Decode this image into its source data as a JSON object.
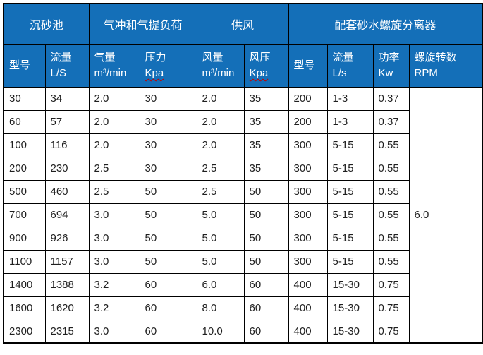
{
  "document": {
    "table": {
      "group_headers": [
        {
          "label": "沉砂池",
          "colspan": 2
        },
        {
          "label": "气冲和气提负荷",
          "colspan": 2
        },
        {
          "label": "供风",
          "colspan": 2
        },
        {
          "label": "配套砂水螺旋分离器",
          "colspan": 4
        }
      ],
      "columns": [
        {
          "title": "型号",
          "subtitle": "",
          "misspelled": false
        },
        {
          "title": "流量",
          "subtitle": "L/S",
          "misspelled": false
        },
        {
          "title": "气量",
          "subtitle": "m³/min",
          "misspelled": false
        },
        {
          "title": "压力",
          "subtitle": "Kpa",
          "misspelled": true
        },
        {
          "title": "风量",
          "subtitle": "m³/min",
          "misspelled": false
        },
        {
          "title": "风压",
          "subtitle": "Kpa",
          "misspelled": true
        },
        {
          "title": "型号",
          "subtitle": "",
          "misspelled": false
        },
        {
          "title": "流量",
          "subtitle": "L/s",
          "misspelled": false
        },
        {
          "title": "功率",
          "subtitle": "Kw",
          "misspelled": false
        },
        {
          "title": "螺旋转数",
          "subtitle": "RPM",
          "misspelled": false
        }
      ],
      "rows": [
        [
          "30",
          "34",
          "2.0",
          "30",
          "2.0",
          "35",
          "200",
          "1-3",
          "0.37"
        ],
        [
          "60",
          "57",
          "2.0",
          "30",
          "2.0",
          "35",
          "200",
          "1-3",
          "0.37"
        ],
        [
          "100",
          "116",
          "2.0",
          "30",
          "2.0",
          "35",
          "300",
          "5-15",
          "0.55"
        ],
        [
          "200",
          "230",
          "2.5",
          "30",
          "2.5",
          "35",
          "300",
          "5-15",
          "0.55"
        ],
        [
          "500",
          "460",
          "2.5",
          "50",
          "2.5",
          "50",
          "300",
          "5-15",
          "0.55"
        ],
        [
          "700",
          "694",
          "3.0",
          "50",
          "5.0",
          "50",
          "300",
          "5-15",
          "0.55"
        ],
        [
          "900",
          "926",
          "3.0",
          "50",
          "5.0",
          "50",
          "300",
          "5-15",
          "0.55"
        ],
        [
          "1100",
          "1157",
          "3.0",
          "50",
          "5.0",
          "50",
          "300",
          "5-15",
          "0.55"
        ],
        [
          "1400",
          "1388",
          "3.2",
          "60",
          "6.0",
          "60",
          "400",
          "15-30",
          "0.75"
        ],
        [
          "1600",
          "1620",
          "3.2",
          "60",
          "8.0",
          "60",
          "400",
          "15-30",
          "0.75"
        ],
        [
          "2300",
          "2315",
          "3.0",
          "60",
          "10.0",
          "60",
          "400",
          "15-30",
          "0.75"
        ]
      ],
      "merged_rpm_value": "6.0",
      "colors": {
        "header_bg": "#146FB8",
        "header_text": "#FFFFFF",
        "body_text": "#1F1F1F",
        "border": "#000000",
        "spellcheck_underline": "#C00000"
      }
    }
  }
}
